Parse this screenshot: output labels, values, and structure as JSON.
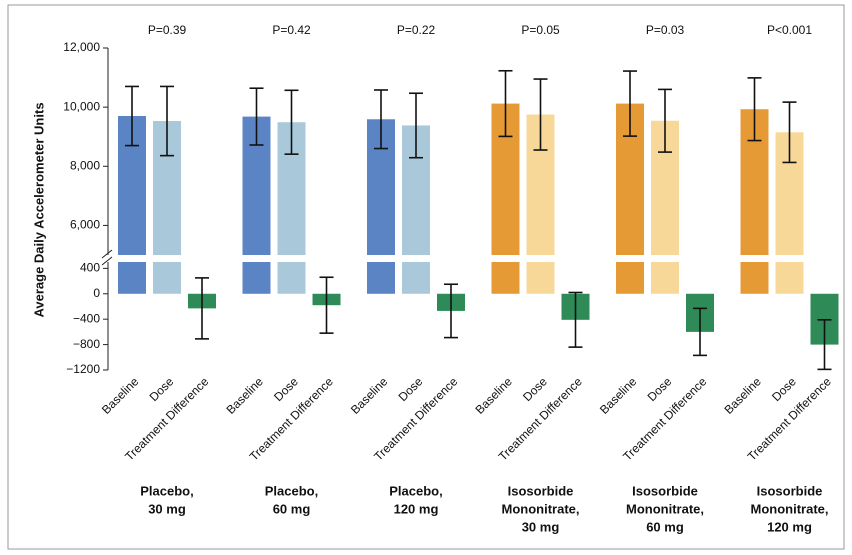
{
  "chart_data": {
    "type": "bar",
    "y_label": "Average Daily Accelerometer Units",
    "groups": [
      {
        "lines": [
          "Placebo,",
          "30 mg"
        ],
        "p_value": "P=0.39"
      },
      {
        "lines": [
          "Placebo,",
          "60  mg"
        ],
        "p_value": "P=0.42"
      },
      {
        "lines": [
          "Placebo,",
          "120 mg"
        ],
        "p_value": "P=0.22"
      },
      {
        "lines": [
          "Isosorbide",
          "Mononitrate,",
          "30 mg"
        ],
        "p_value": "P=0.05"
      },
      {
        "lines": [
          "Isosorbide",
          "Mononitrate,",
          "60 mg"
        ],
        "p_value": "P=0.03"
      },
      {
        "lines": [
          "Isosorbide",
          "Mononitrate,",
          "120 mg"
        ],
        "p_value": "P<0.001"
      }
    ],
    "series": [
      {
        "name": "Baseline",
        "colors": [
          "#5b84c4",
          "#5b84c4",
          "#5b84c4",
          "#e69a35",
          "#e69a35",
          "#e69a35"
        ],
        "values": [
          9700,
          9680,
          9590,
          10120,
          10120,
          9930
        ],
        "errors": [
          1000,
          960,
          990,
          1110,
          1100,
          1060
        ]
      },
      {
        "name": "Dose",
        "colors": [
          "#a9c8d9",
          "#a9c8d9",
          "#a9c8d9",
          "#f8d898",
          "#f8d898",
          "#f8d898"
        ],
        "values": [
          9530,
          9490,
          9380,
          9750,
          9540,
          9150
        ],
        "errors": [
          1170,
          1080,
          1090,
          1200,
          1060,
          1020
        ]
      },
      {
        "name": "Treatment Difference",
        "colors": [
          "#2e8b57",
          "#2e8b57",
          "#2e8b57",
          "#2e8b57",
          "#2e8b57",
          "#2e8b57"
        ],
        "values": [
          -230,
          -180,
          -270,
          -410,
          -600,
          -800
        ],
        "errors": [
          480,
          440,
          420,
          430,
          370,
          390
        ]
      }
    ],
    "ylim": [
      5000,
      12000
    ],
    "yticks": [
      {
        "value": 6000,
        "label": "6,000"
      },
      {
        "value": 8000,
        "label": "8,000"
      },
      {
        "value": 10000,
        "label": "10,000"
      },
      {
        "value": 12000,
        "label": "12,000"
      }
    ],
    "ylim_lower": [
      -1200,
      500
    ],
    "yticks_lower": [
      400,
      0,
      {
        "value": -400,
        "label": "−400"
      },
      {
        "value": -800,
        "label": "−800"
      },
      {
        "value": -1200,
        "label": "−1200"
      }
    ]
  }
}
